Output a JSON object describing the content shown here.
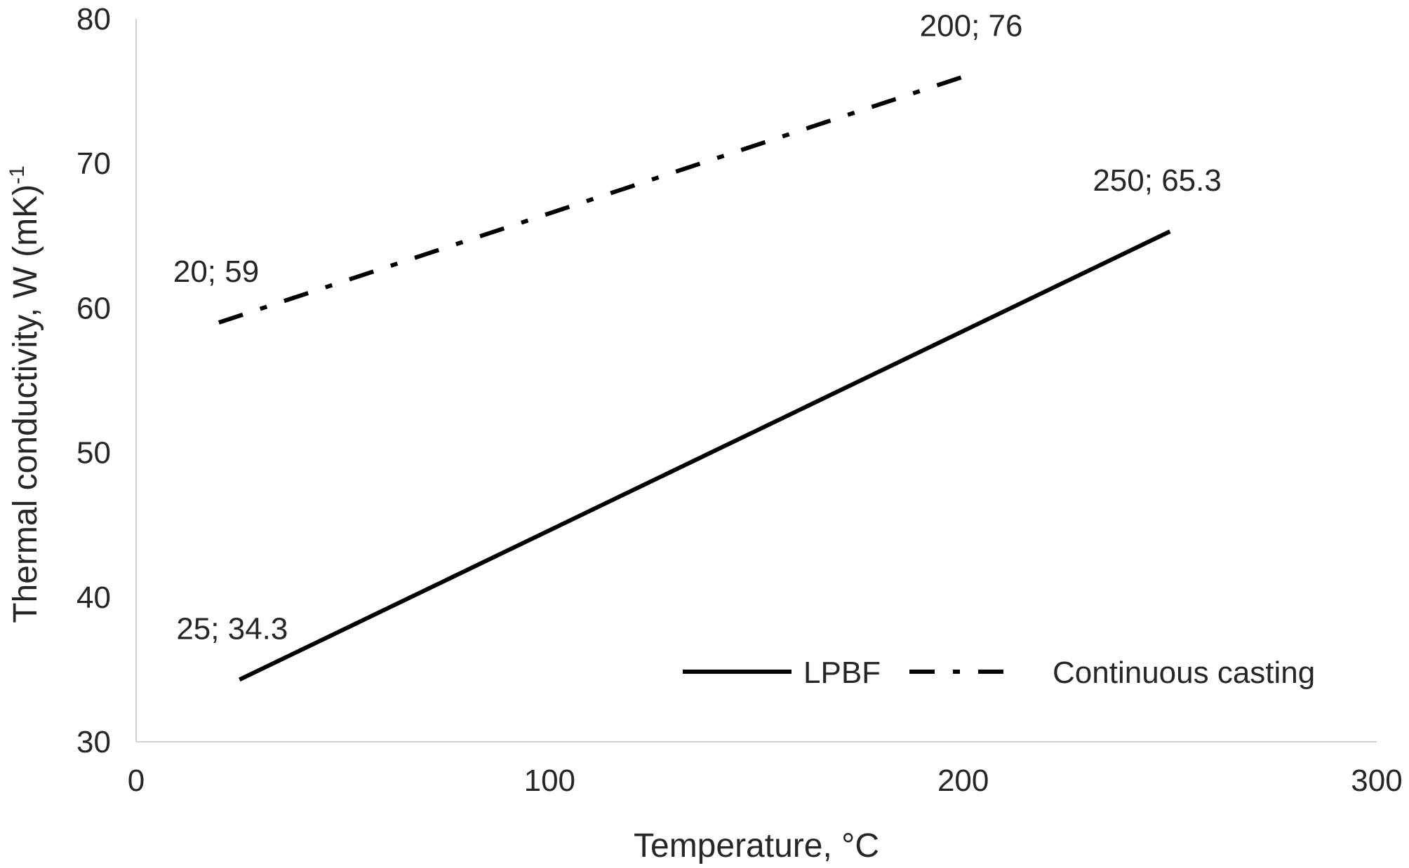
{
  "chart_data": {
    "type": "line",
    "title": "",
    "xlabel": "Temperature, °C",
    "ylabel": "Thermal conductivity, W (mK)",
    "ylabel_superscript": "-1",
    "xlim": [
      0,
      300
    ],
    "ylim": [
      30,
      80
    ],
    "xticks": [
      0,
      100,
      200,
      300
    ],
    "yticks": [
      30,
      40,
      50,
      60,
      70,
      80
    ],
    "grid": false,
    "legend_position": "bottom-right",
    "series": [
      {
        "name": "LPBF",
        "line_style": "solid",
        "color": "#000000",
        "x": [
          25,
          250
        ],
        "y": [
          34.3,
          65.3
        ],
        "point_labels": [
          "25; 34.3",
          "250; 65.3"
        ]
      },
      {
        "name": "Continuous casting",
        "line_style": "dash-dot",
        "color": "#000000",
        "x": [
          20,
          200
        ],
        "y": [
          59,
          76
        ],
        "point_labels": [
          "20; 59",
          "200; 76"
        ]
      }
    ]
  }
}
